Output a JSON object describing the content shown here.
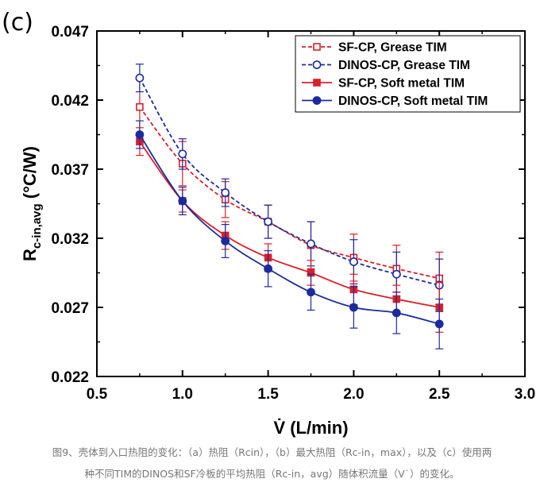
{
  "panel_label": "(c)",
  "caption": {
    "line1": "图9、壳体到入口热阻的变化：（a）热阻（Rcin），（b）最大热阻（Rc-in，max），以及（c）使用两",
    "line2": "种不同TIM的DINOS和SF冷板的平均热阻（Rc-in，avg）随体积流量（V˙）的变化。"
  },
  "chart_data": {
    "type": "line",
    "xlabel": "V̇ (L/min)",
    "ylabel": {
      "main": "R",
      "subscript": "c-in,avg",
      "unit": " (°C/W)"
    },
    "xlim": [
      0.5,
      3.0
    ],
    "ylim": [
      0.022,
      0.047
    ],
    "x_ticks": [
      "0.5",
      "1.0",
      "1.5",
      "2.0",
      "2.5",
      "3.0"
    ],
    "y_ticks": [
      "0.022",
      "0.027",
      "0.032",
      "0.037",
      "0.042",
      "0.047"
    ],
    "grid": false,
    "legend_position": "top-right",
    "x": [
      0.75,
      1.0,
      1.25,
      1.5,
      1.75,
      2.0,
      2.25,
      2.5
    ],
    "series": [
      {
        "name": "SF-CP, Grease TIM",
        "color": "#d9202a",
        "dash": true,
        "marker": "square-open",
        "values": [
          0.0415,
          0.0374,
          0.0348,
          0.0332,
          0.0315,
          0.0306,
          0.0298,
          0.0291
        ],
        "errors": [
          0.002,
          0.0016,
          0.0013,
          0.0012,
          0.0017,
          0.0017,
          0.0017,
          0.0019
        ]
      },
      {
        "name": "DINOS-CP, Grease TIM",
        "color": "#1b2b9e",
        "dash": true,
        "marker": "circle-open",
        "values": [
          0.0436,
          0.0381,
          0.0353,
          0.0332,
          0.0316,
          0.0303,
          0.0294,
          0.0286
        ],
        "errors": [
          0.001,
          0.0011,
          0.001,
          0.0012,
          0.0016,
          0.0016,
          0.0016,
          0.0019
        ]
      },
      {
        "name": "SF-CP, Soft metal TIM",
        "color": "#d9202a",
        "dash": false,
        "marker": "square-filled",
        "values": [
          0.039,
          0.0347,
          0.0322,
          0.0306,
          0.0295,
          0.0283,
          0.0276,
          0.027
        ],
        "errors": [
          0.001,
          0.0008,
          0.001,
          0.001,
          0.0009,
          0.0011,
          0.001,
          0.0018
        ]
      },
      {
        "name": "DINOS-CP, Soft metal TIM",
        "color": "#1b2b9e",
        "dash": false,
        "marker": "circle-filled",
        "values": [
          0.0395,
          0.0347,
          0.0318,
          0.0298,
          0.0281,
          0.027,
          0.0266,
          0.0258
        ],
        "errors": [
          0.001,
          0.001,
          0.0012,
          0.0013,
          0.0013,
          0.0015,
          0.0015,
          0.0018
        ]
      }
    ]
  }
}
